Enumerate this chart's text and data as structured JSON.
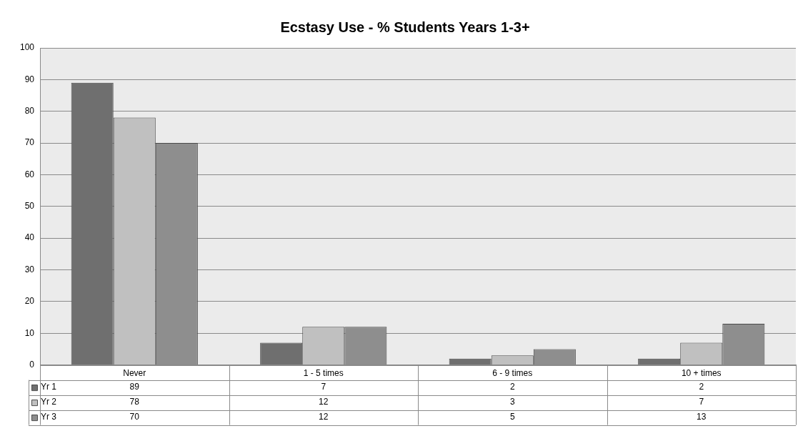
{
  "chart_data": {
    "type": "bar",
    "title": "Ecstasy Use - % Students Years 1-3+",
    "categories": [
      "Never",
      "1 - 5 times",
      "6 - 9 times",
      "10 + times"
    ],
    "series": [
      {
        "name": "Yr 1",
        "color": "#6f6f6f",
        "values": [
          89,
          7,
          2,
          2
        ]
      },
      {
        "name": "Yr 2",
        "color": "#c0c0c0",
        "values": [
          78,
          12,
          3,
          7
        ]
      },
      {
        "name": "Yr 3",
        "color": "#8e8e8e",
        "values": [
          70,
          12,
          5,
          13
        ]
      }
    ],
    "ylim": [
      0,
      100
    ],
    "yticks": [
      0,
      10,
      20,
      30,
      40,
      50,
      60,
      70,
      80,
      90,
      100
    ],
    "grid": "y",
    "legend": "bottom",
    "data_labels": true
  }
}
